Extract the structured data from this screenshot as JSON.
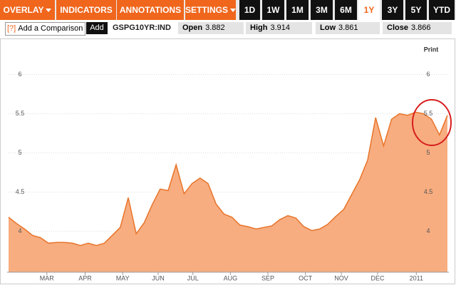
{
  "toolbar": {
    "menus": [
      "OVERLAY",
      "INDICATORS",
      "ANNOTATIONS",
      "SETTINGS"
    ],
    "ranges": [
      "1D",
      "1W",
      "1M",
      "3M",
      "6M",
      "1Y",
      "3Y",
      "5Y",
      "YTD"
    ],
    "selected_range": "1Y"
  },
  "compare": {
    "help": "[?]",
    "placeholder": "Add a Comparison",
    "button": "Add"
  },
  "symbol": "GSPG10YR:IND",
  "quotes": [
    {
      "label": "Open",
      "value": 3.882
    },
    {
      "label": "High",
      "value": 3.914
    },
    {
      "label": "Low",
      "value": 3.861
    },
    {
      "label": "Close",
      "value": 3.866
    }
  ],
  "print": "Print",
  "chart_data": {
    "type": "area",
    "series": [
      {
        "color": "#e8742a",
        "fill": "#f7ad80",
        "values": [
          4.18,
          4.1,
          4.03,
          3.95,
          3.92,
          3.85,
          3.86,
          3.86,
          3.85,
          3.82,
          3.85,
          3.82,
          3.85,
          3.95,
          4.05,
          4.43,
          3.97,
          4.11,
          4.34,
          4.54,
          4.52,
          4.85,
          4.48,
          4.61,
          4.68,
          4.61,
          4.35,
          4.22,
          4.18,
          4.08,
          4.06,
          4.03,
          4.05,
          4.07,
          4.15,
          4.2,
          4.17,
          4.06,
          4.01,
          4.03,
          4.09,
          4.19,
          4.28,
          4.47,
          4.66,
          4.91,
          5.45,
          5.09,
          5.43,
          5.5,
          5.48,
          5.52,
          5.5,
          5.43,
          5.23,
          5.48
        ]
      }
    ],
    "xlim": [
      0,
      55
    ],
    "xticks": [
      {
        "value": 4.8,
        "label": "MAR"
      },
      {
        "value": 9.6,
        "label": "APR"
      },
      {
        "value": 14.3,
        "label": "MAY"
      },
      {
        "value": 18.75,
        "label": "JUN"
      },
      {
        "value": 23.1,
        "label": "JUL"
      },
      {
        "value": 27.8,
        "label": "AUG"
      },
      {
        "value": 32.5,
        "label": "SEP"
      },
      {
        "value": 37.2,
        "label": "OCT"
      },
      {
        "value": 41.7,
        "label": "NOV"
      },
      {
        "value": 46.25,
        "label": "DEC"
      },
      {
        "value": 51.1,
        "label": "2011"
      }
    ],
    "ylim": [
      3.48,
      6.45
    ],
    "yticks": [
      4,
      4.5,
      5,
      5.5,
      6
    ],
    "grid": true
  }
}
